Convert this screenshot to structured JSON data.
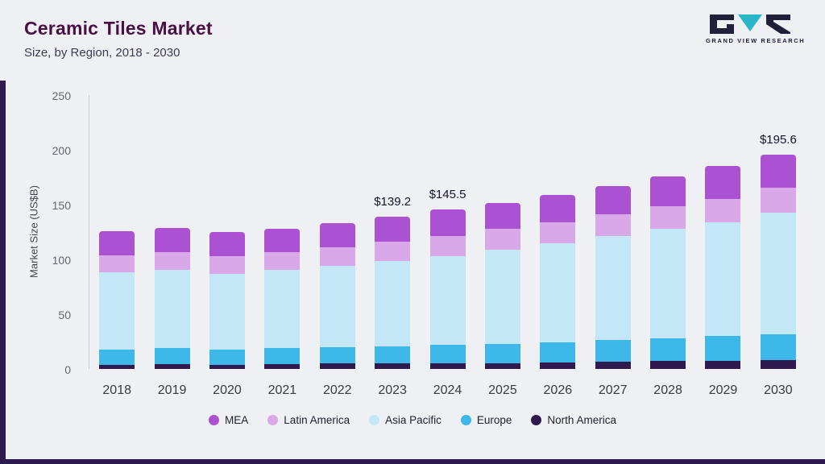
{
  "header": {
    "title": "Ceramic Tiles Market",
    "subtitle": "Size, by Region, 2018 - 2030",
    "logo_text": "GRAND VIEW RESEARCH"
  },
  "colors": {
    "accent_dark_purple": "#2e1a4e",
    "title": "#4a1046",
    "logo_teal": "#2ab5c9",
    "page_background": "#eef0f4"
  },
  "chart_data": {
    "type": "bar",
    "stacked": true,
    "title": "Ceramic Tiles Market Size, by Region, 2018 - 2030",
    "xlabel": "",
    "ylabel": "Market Size (US$B)",
    "ylim": [
      0,
      250
    ],
    "yticks": [
      0,
      50,
      100,
      150,
      200,
      250
    ],
    "grid": false,
    "legend_position": "bottom",
    "categories": [
      "2018",
      "2019",
      "2020",
      "2021",
      "2022",
      "2023",
      "2024",
      "2025",
      "2026",
      "2027",
      "2028",
      "2029",
      "2030"
    ],
    "series": [
      {
        "key": "north-america",
        "name": "North America",
        "color": "#2e1a4e",
        "values": [
          4,
          4.5,
          4,
          4.5,
          5,
          5,
          5.5,
          5.5,
          6,
          6.5,
          7,
          7.5,
          8
        ]
      },
      {
        "key": "europe",
        "name": "Europe",
        "color": "#3eb7e9",
        "values": [
          14,
          15,
          14,
          15,
          15,
          15.5,
          16.5,
          17.5,
          18.5,
          20,
          21,
          22.5,
          24
        ]
      },
      {
        "key": "asia-pacific",
        "name": "Asia Pacific",
        "color": "#c4e7f8",
        "values": [
          70,
          71,
          69,
          71,
          74,
          78,
          81,
          86,
          90,
          95,
          100,
          104,
          111
        ]
      },
      {
        "key": "latin-america",
        "name": "Latin America",
        "color": "#d9a8e8",
        "values": [
          16,
          16.5,
          16,
          16.5,
          17,
          17.5,
          18.5,
          19,
          19.5,
          20,
          20.5,
          21.5,
          22.6
        ]
      },
      {
        "key": "mea",
        "name": "MEA",
        "color": "#aa52d2",
        "values": [
          22,
          22,
          22,
          21,
          22,
          23.2,
          24,
          23.5,
          25,
          25.5,
          27.5,
          29.5,
          30
        ]
      }
    ],
    "totals": [
      126,
      129,
      125,
      128,
      133,
      139.2,
      145.5,
      151.5,
      159,
      167,
      176,
      185,
      195.6
    ],
    "annotations": [
      {
        "category": "2023",
        "text": "$139.2"
      },
      {
        "category": "2024",
        "text": "$145.5"
      },
      {
        "category": "2030",
        "text": "$195.6"
      }
    ],
    "legend": [
      "MEA",
      "Latin America",
      "Asia Pacific",
      "Europe",
      "North America"
    ]
  }
}
